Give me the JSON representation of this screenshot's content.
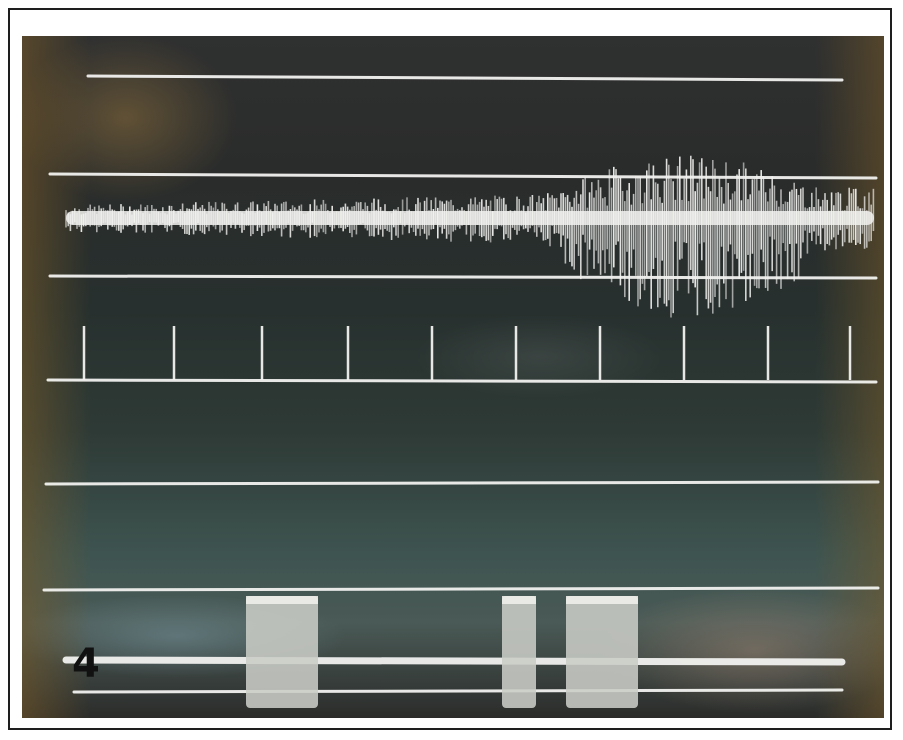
{
  "panel_label": "4",
  "colors": {
    "trace": "#f2f2f0",
    "frame_border": "#1e1e1e",
    "label": "#111111"
  }
}
